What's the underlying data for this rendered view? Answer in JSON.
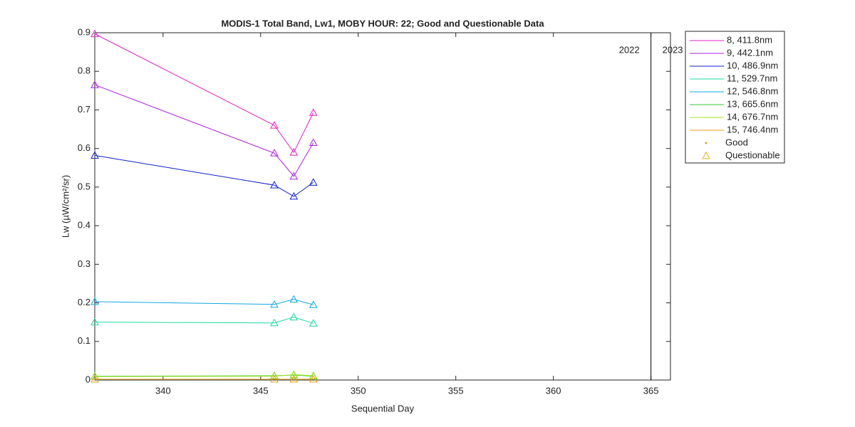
{
  "chart_data": {
    "type": "line",
    "title": "MODIS-1 Total Band,  Lw1, MOBY HOUR: 22;  Good and Questionable Data",
    "x_label": "Sequential Day",
    "y_label": "Lw (µW/cm²/sr)",
    "x": [
      336.5,
      345.7,
      346.7,
      347.7
    ],
    "series": [
      {
        "name": "8, 411.8nm",
        "color": "#e020c8",
        "values": [
          0.897,
          0.66,
          0.59,
          0.693
        ]
      },
      {
        "name": "9, 442.1nm",
        "color": "#b020e0",
        "values": [
          0.765,
          0.588,
          0.528,
          0.615
        ]
      },
      {
        "name": "10, 486.9nm",
        "color": "#1020c8",
        "values": [
          0.582,
          0.505,
          0.476,
          0.512
        ]
      },
      {
        "name": "11, 529.7nm",
        "color": "#20d8a0",
        "values": [
          0.15,
          0.148,
          0.163,
          0.147
        ]
      },
      {
        "name": "12, 546.8nm",
        "color": "#10a8e0",
        "values": [
          0.203,
          0.196,
          0.209,
          0.195
        ]
      },
      {
        "name": "13, 665.6nm",
        "color": "#30c830",
        "values": [
          0.01,
          0.011,
          0.013,
          0.01
        ]
      },
      {
        "name": "14, 676.7nm",
        "color": "#a8e020",
        "values": [
          0.009,
          0.01,
          0.014,
          0.011
        ]
      },
      {
        "name": "15, 746.4nm",
        "color": "#e8a010",
        "values": [
          0.002,
          0.002,
          0.002,
          0.002
        ]
      }
    ],
    "markers": [
      {
        "name": "Good",
        "color": "#f0a020"
      },
      {
        "name": "Questionable",
        "color": "#f0b020"
      }
    ],
    "vline": 365,
    "annotations": [
      "2022",
      "2023"
    ],
    "xlim": [
      336.5,
      366
    ],
    "xticks": [
      340,
      345,
      350,
      355,
      360,
      365
    ],
    "ylim": [
      0,
      0.9
    ],
    "yticks": [
      0,
      0.1,
      0.2,
      0.3,
      0.4,
      0.5,
      0.6,
      0.7,
      0.8,
      0.9
    ],
    "legend": "outside-top-right"
  }
}
